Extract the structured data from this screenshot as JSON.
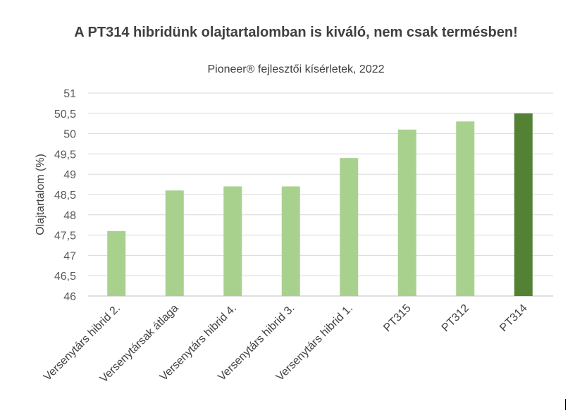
{
  "chart_data": {
    "type": "bar",
    "title": "A PT314 hibridünk olajtartalomban is kiváló, nem csak termésben!",
    "subtitle": "Pioneer® fejlesztői kísérletek, 2022",
    "xlabel": "",
    "ylabel": "Olajtartalom (%)",
    "ylim": [
      46,
      51
    ],
    "yticks": [
      "46",
      "46,5",
      "47",
      "47,5",
      "48",
      "48,5",
      "49",
      "49,5",
      "50",
      "50,5",
      "51"
    ],
    "categories": [
      "Versenytárs hibrid 2.",
      "Versenytársak átlaga",
      "Versenytárs hibrid 4.",
      "Versenytárs hibrid 3.",
      "Versenytárs hibrid 1.",
      "PT315",
      "PT312",
      "PT314"
    ],
    "values": [
      47.6,
      48.6,
      48.7,
      48.7,
      49.4,
      50.1,
      50.3,
      50.5
    ],
    "colors": [
      "#a9d18e",
      "#a9d18e",
      "#a9d18e",
      "#a9d18e",
      "#a9d18e",
      "#a9d18e",
      "#a9d18e",
      "#548235"
    ],
    "grid": true,
    "legend": "none"
  }
}
